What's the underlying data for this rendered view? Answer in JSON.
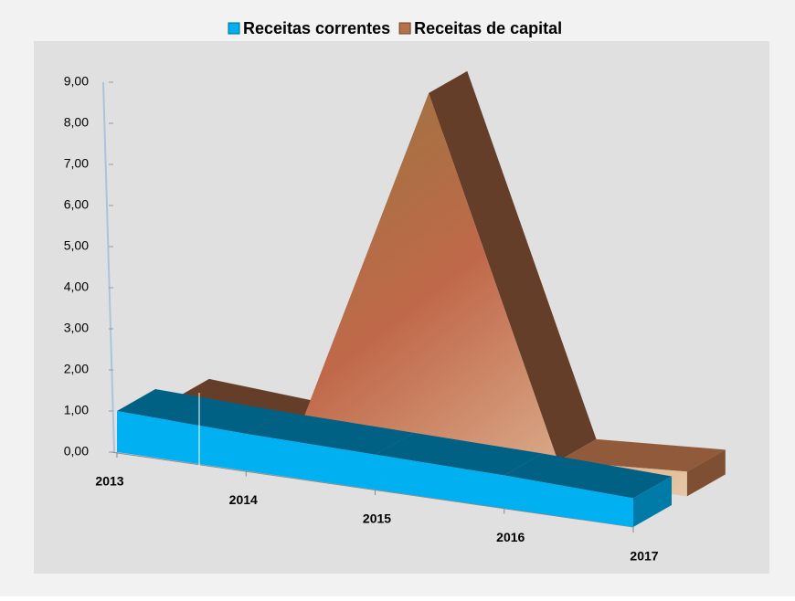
{
  "chart_data": {
    "type": "area3d",
    "categories": [
      "2013",
      "2014",
      "2015",
      "2016",
      "2017"
    ],
    "series": [
      {
        "name": "Receitas correntes",
        "color": "#00b0f0",
        "values": [
          1.0,
          0.9,
          0.85,
          0.8,
          0.7
        ]
      },
      {
        "name": "Receitas de capital",
        "color": "#b5714a",
        "values": [
          0.5,
          0.3,
          8.9,
          0.4,
          0.6
        ]
      }
    ],
    "ylim": [
      0,
      9
    ],
    "yticks": [
      {
        "value": 0,
        "label": "0,00"
      },
      {
        "value": 1,
        "label": "1,00"
      },
      {
        "value": 2,
        "label": "2,00"
      },
      {
        "value": 3,
        "label": "3,00"
      },
      {
        "value": 4,
        "label": "4,00"
      },
      {
        "value": 5,
        "label": "5,00"
      },
      {
        "value": 6,
        "label": "6,00"
      },
      {
        "value": 7,
        "label": "7,00"
      },
      {
        "value": 8,
        "label": "8,00"
      },
      {
        "value": 9,
        "label": "9,00"
      }
    ],
    "legend": "top"
  }
}
